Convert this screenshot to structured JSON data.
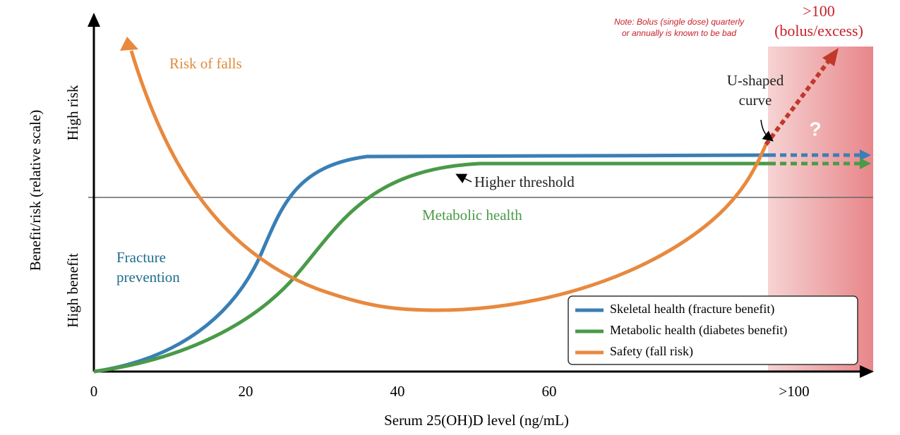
{
  "axes": {
    "y_label": "Benefit/risk (relative scale)",
    "y_levels": [
      "High risk",
      "High benefit"
    ],
    "x_label": "Serum 25(OH)D level (ng/mL)",
    "x_ticks": [
      0,
      20,
      40,
      60,
      ">100"
    ]
  },
  "annotations": {
    "risk_of_falls": "Risk of falls",
    "fracture_prevention": [
      "Fracture",
      "prevention"
    ],
    "metabolic_health": "Metabolic health",
    "higher_threshold": "Higher threshold",
    "u_shaped": [
      "U-shaped",
      "curve"
    ],
    "question": "?",
    "note": [
      "Note: Bolus (single dose) quarterly",
      "or annually is known to be bad"
    ],
    "excess": [
      ">100",
      "(bolus/excess)"
    ]
  },
  "legend": [
    "Skeletal health (fracture benefit)",
    "Metabolic health (diabetes benefit)",
    "Safety (fall risk)"
  ]
}
